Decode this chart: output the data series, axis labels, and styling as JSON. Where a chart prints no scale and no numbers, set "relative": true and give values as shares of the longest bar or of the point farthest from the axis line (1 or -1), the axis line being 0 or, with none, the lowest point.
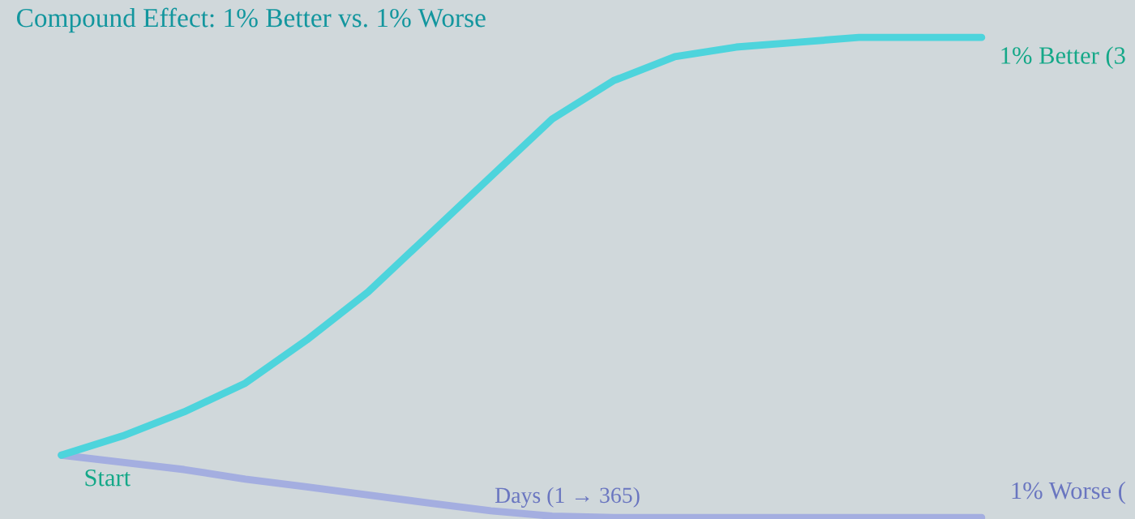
{
  "chart_data": {
    "type": "line",
    "relative": true,
    "title": "Compound Effect: 1% Better vs. 1% Worse",
    "xlabel": "Days (1 → 365)",
    "categories": [
      null,
      null,
      null,
      null,
      null,
      null,
      null,
      null,
      null,
      null,
      null,
      null,
      null,
      null,
      null,
      null
    ],
    "series": [
      {
        "name": "1% Better (3",
        "color": "#4dd4dc",
        "values": [
          0.13,
          0.17,
          0.22,
          0.28,
          0.37,
          0.47,
          0.59,
          0.71,
          0.83,
          0.91,
          0.96,
          0.98,
          0.99,
          1.0,
          1.0,
          1.0
        ]
      },
      {
        "name": "1% Worse (",
        "color": "#a4aee0",
        "values": [
          0.13,
          0.115,
          0.1,
          0.08,
          0.064,
          0.047,
          0.03,
          0.014,
          0.003,
          0,
          0,
          0,
          0,
          0,
          0,
          0
        ]
      }
    ],
    "annotations": [
      {
        "text": "Start",
        "y": 0.13
      }
    ],
    "legend": false,
    "marker": "none",
    "line_style": "solid"
  }
}
